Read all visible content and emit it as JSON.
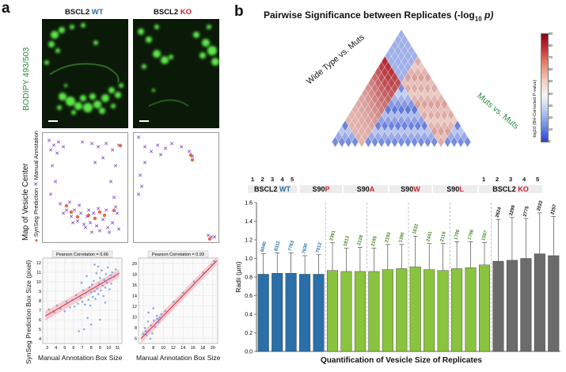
{
  "panel_a": {
    "letter": "a",
    "wt_title": {
      "gene": "BSCL2",
      "genotype": "WT",
      "genotype_color": "#2a6fa8"
    },
    "ko_title": {
      "gene": "BSCL2",
      "genotype": "KO",
      "genotype_color": "#d21f2a"
    },
    "stain_label": "BODIPY 493/503",
    "stain_color": "#2e8b3e",
    "map_title": "Map of Vesicle Center",
    "legend_pred": "SynSeg Prediction",
    "legend_manual": "Manual Annotation",
    "pred_color": "#e26a4a",
    "manual_color": "#6b2bc2",
    "scatter_ylabel": "SynSeg Prediction Box Size (pixel)",
    "scatter_xlabel": "Manual Annotation Box Size",
    "wt_corr": "Pearson Correlation = 0.66",
    "ko_corr": "Pearson Correlation = 0.93"
  },
  "panel_b": {
    "letter": "b",
    "heatmap_title": "Pairwise Significance between Replicates (-log",
    "heatmap_title_sub": "10",
    "heatmap_title_end": " p)",
    "label_wt": "Wide Type vs. Muts",
    "label_muts": "Muts vs. Muts",
    "label_muts_color": "#2e8b3e",
    "colorbar_label": "-log10 (BH-Corrected P-value)",
    "colorbar_ticks": [
      "90",
      "80",
      "70",
      "60",
      "50",
      "40",
      "30",
      "20",
      "10",
      "0"
    ],
    "groups": [
      {
        "prefix": "BSCL2 ",
        "suffix": "WT",
        "color": "#2a6fa8"
      },
      {
        "prefix": "S90",
        "suffix": "P",
        "color": "#d21f2a"
      },
      {
        "prefix": "S90",
        "suffix": "A",
        "color": "#d21f2a"
      },
      {
        "prefix": "S90",
        "suffix": "W",
        "color": "#d21f2a"
      },
      {
        "prefix": "S90",
        "suffix": "L",
        "color": "#d21f2a"
      },
      {
        "prefix": "BSCL2 ",
        "suffix": "KO",
        "color": "#d21f2a"
      }
    ],
    "rep_labels": [
      "1",
      "2",
      "3",
      "4",
      "5"
    ],
    "xlabel": "Quantification of Vesicle Size of Replicates"
  },
  "chart_data": [
    {
      "type": "bar",
      "title": "",
      "ylabel": "Radii (µm)",
      "xlabel": "Quantification of Vesicle Size of Replicates",
      "ylim": [
        0,
        1.6
      ],
      "yticks": [
        "0.0",
        "0.2",
        "0.4",
        "0.6",
        "0.8",
        "1.0",
        "1.2",
        "1.4",
        "1.6"
      ],
      "categories": [
        "WT-1",
        "WT-2",
        "WT-3",
        "WT-4",
        "WT-5",
        "S90P-1",
        "S90P-2",
        "S90P-3",
        "S90A-1",
        "S90A-2",
        "S90A-3",
        "S90W-1",
        "S90W-2",
        "S90W-3",
        "S90L-1",
        "S90L-2",
        "S90L-3",
        "KO-1",
        "KO-2",
        "KO-3",
        "KO-4",
        "KO-5"
      ],
      "values": [
        0.83,
        0.84,
        0.84,
        0.83,
        0.83,
        0.87,
        0.86,
        0.86,
        0.86,
        0.88,
        0.89,
        0.91,
        0.88,
        0.87,
        0.89,
        0.9,
        0.93,
        0.97,
        0.98,
        1.0,
        1.05,
        1.03
      ],
      "errors": [
        0.22,
        0.22,
        0.22,
        0.2,
        0.21,
        0.3,
        0.25,
        0.26,
        0.25,
        0.27,
        0.26,
        0.33,
        0.28,
        0.29,
        0.29,
        0.28,
        0.24,
        0.45,
        0.46,
        0.43,
        0.44,
        0.42
      ],
      "counts": [
        "6040",
        "8311",
        "7763",
        "7630",
        "7012",
        "2391",
        "1813",
        "2128",
        "2195",
        "2193",
        "1390",
        "1632",
        "2441",
        "2119",
        "1706",
        "1766",
        "1597",
        "2624",
        "2299",
        "2775",
        "2022",
        "2257"
      ],
      "bar_colors": [
        "#2a6fa8",
        "#2a6fa8",
        "#2a6fa8",
        "#2a6fa8",
        "#2a6fa8",
        "#8ac33d",
        "#8ac33d",
        "#8ac33d",
        "#8ac33d",
        "#8ac33d",
        "#8ac33d",
        "#8ac33d",
        "#8ac33d",
        "#8ac33d",
        "#8ac33d",
        "#8ac33d",
        "#8ac33d",
        "#6b6b6b",
        "#6b6b6b",
        "#6b6b6b",
        "#6b6b6b",
        "#6b6b6b"
      ],
      "count_colors": [
        "#2a6fa8",
        "#2a6fa8",
        "#2a6fa8",
        "#2a6fa8",
        "#2a6fa8",
        "#4a8a2a",
        "#4a8a2a",
        "#4a8a2a",
        "#4a8a2a",
        "#4a8a2a",
        "#4a8a2a",
        "#4a8a2a",
        "#4a8a2a",
        "#4a8a2a",
        "#4a8a2a",
        "#4a8a2a",
        "#4a8a2a",
        "#111111",
        "#111111",
        "#111111",
        "#111111",
        "#111111"
      ]
    },
    {
      "type": "scatter",
      "title": "Pearson Correlation = 0.66",
      "xlabel": "Manual Annotation Box Size",
      "ylabel": "SynSeg Prediction Box Size (pixel)",
      "xlim": [
        2.5,
        11.5
      ],
      "ylim": [
        3.5,
        12.5
      ],
      "xticks": [
        "3",
        "4",
        "5",
        "6",
        "7",
        "8",
        "9",
        "10",
        "11"
      ],
      "yticks": [
        "4",
        "5",
        "6",
        "7",
        "8",
        "9",
        "10",
        "11",
        "12"
      ],
      "x": [
        3.2,
        3.8,
        4.1,
        4.5,
        5.0,
        5.2,
        5.6,
        5.9,
        6.1,
        6.3,
        6.5,
        6.6,
        6.8,
        7.0,
        7.1,
        7.3,
        7.4,
        7.5,
        7.7,
        7.8,
        7.9,
        8.0,
        8.1,
        8.2,
        8.3,
        8.4,
        8.5,
        8.6,
        8.7,
        8.8,
        8.9,
        9.0,
        9.1,
        9.2,
        9.3,
        9.4,
        9.5,
        9.6,
        9.7,
        9.8,
        9.9,
        10.0,
        10.1,
        10.2,
        10.3,
        10.4,
        10.6,
        10.8,
        7.2,
        7.6,
        8.0,
        8.4,
        9.0,
        9.6,
        6.9,
        8.8
      ],
      "y": [
        7.1,
        6.8,
        7.5,
        7.2,
        6.9,
        7.9,
        7.3,
        8.1,
        7.4,
        8.6,
        7.7,
        4.8,
        8.3,
        7.9,
        9.1,
        7.6,
        8.8,
        10.6,
        8.1,
        9.4,
        7.5,
        8.9,
        9.7,
        8.4,
        10.1,
        9.0,
        8.2,
        10.9,
        9.3,
        8.7,
        9.8,
        10.4,
        9.1,
        11.2,
        9.6,
        8.5,
        10.2,
        9.4,
        10.8,
        9.9,
        11.5,
        10.3,
        9.2,
        10.7,
        9.8,
        11.0,
        10.5,
        11.3,
        5.0,
        6.2,
        5.5,
        11.8,
        6.0,
        7.8,
        9.9,
        11.6
      ],
      "fit": [
        [
          2.8,
          6.4
        ],
        [
          11.2,
          10.9
        ]
      ]
    },
    {
      "type": "scatter",
      "title": "Pearson Correlation = 0.93",
      "xlabel": "Manual Annotation Box Size",
      "ylabel": "",
      "xlim": [
        5,
        21
      ],
      "ylim": [
        5,
        21
      ],
      "xticks": [
        "6",
        "8",
        "10",
        "12",
        "14",
        "16",
        "18",
        "20"
      ],
      "yticks": [
        "6",
        "8",
        "10",
        "12",
        "14",
        "16",
        "18",
        "20"
      ],
      "x": [
        6.0,
        6.3,
        6.6,
        6.9,
        7.2,
        7.5,
        7.8,
        8.1,
        8.4,
        8.7,
        9.0,
        9.3,
        9.6,
        6.5,
        7.0,
        8.0,
        9.2,
        10.4,
        12.1,
        14.0,
        16.2,
        18.1,
        19.8,
        20.3,
        7.4,
        8.8
      ],
      "y": [
        6.8,
        7.9,
        6.6,
        9.1,
        7.5,
        8.4,
        6.9,
        9.3,
        8.1,
        10.2,
        9.0,
        9.8,
        10.5,
        7.3,
        10.8,
        11.6,
        9.4,
        11.1,
        12.8,
        14.5,
        16.6,
        18.3,
        19.7,
        20.4,
        5.9,
        9.6
      ],
      "fit": [
        [
          5.5,
          5.9
        ],
        [
          20.8,
          20.5
        ]
      ]
    }
  ]
}
